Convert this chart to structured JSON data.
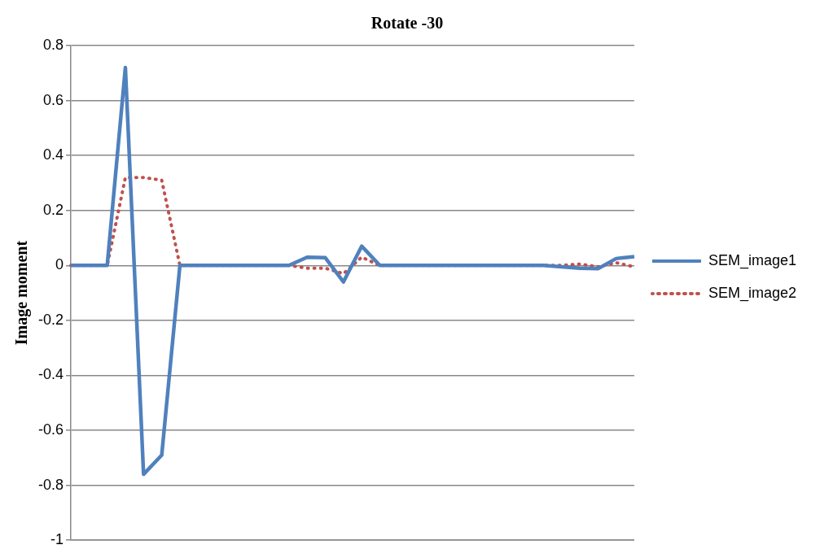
{
  "chart_data": {
    "type": "line",
    "title": "Rotate -30",
    "ylabel": "Image moment",
    "categories": [
      null,
      null,
      null,
      null,
      null,
      null,
      null,
      null,
      null,
      null,
      null,
      null,
      null,
      null,
      null,
      null,
      null,
      null,
      null,
      null,
      null,
      null,
      null,
      null,
      null,
      null,
      null,
      null,
      null,
      null,
      null,
      null
    ],
    "series": [
      {
        "name": "SEM_image1",
        "color": "#4f81bd",
        "line_style": "solid",
        "values": [
          0,
          0,
          0,
          0.72,
          -0.76,
          -0.69,
          0,
          0,
          0,
          0,
          0,
          0,
          0,
          0.03,
          0.028,
          -0.06,
          0.07,
          0,
          0,
          0,
          0,
          0,
          0,
          0,
          0,
          0,
          0,
          -0.005,
          -0.01,
          -0.012,
          0.025,
          0.032
        ]
      },
      {
        "name": "SEM_image2",
        "color": "#c0504d",
        "line_style": "dotted",
        "values": [
          0,
          0,
          0,
          0.32,
          0.32,
          0.31,
          0,
          0,
          0,
          0,
          0,
          0,
          0,
          -0.01,
          -0.01,
          -0.03,
          0.03,
          0,
          0,
          0,
          0,
          0,
          0,
          0,
          0,
          0,
          0,
          0,
          0.005,
          -0.005,
          0.01,
          -0.005
        ]
      }
    ],
    "ylim": [
      -1,
      0.8
    ],
    "yticks": [
      -1,
      -0.8,
      -0.6,
      -0.4,
      -0.2,
      0,
      0.2,
      0.4,
      0.6,
      0.8
    ],
    "grid": "y",
    "legend": "right",
    "tick_labels": "y",
    "marker": "none"
  }
}
